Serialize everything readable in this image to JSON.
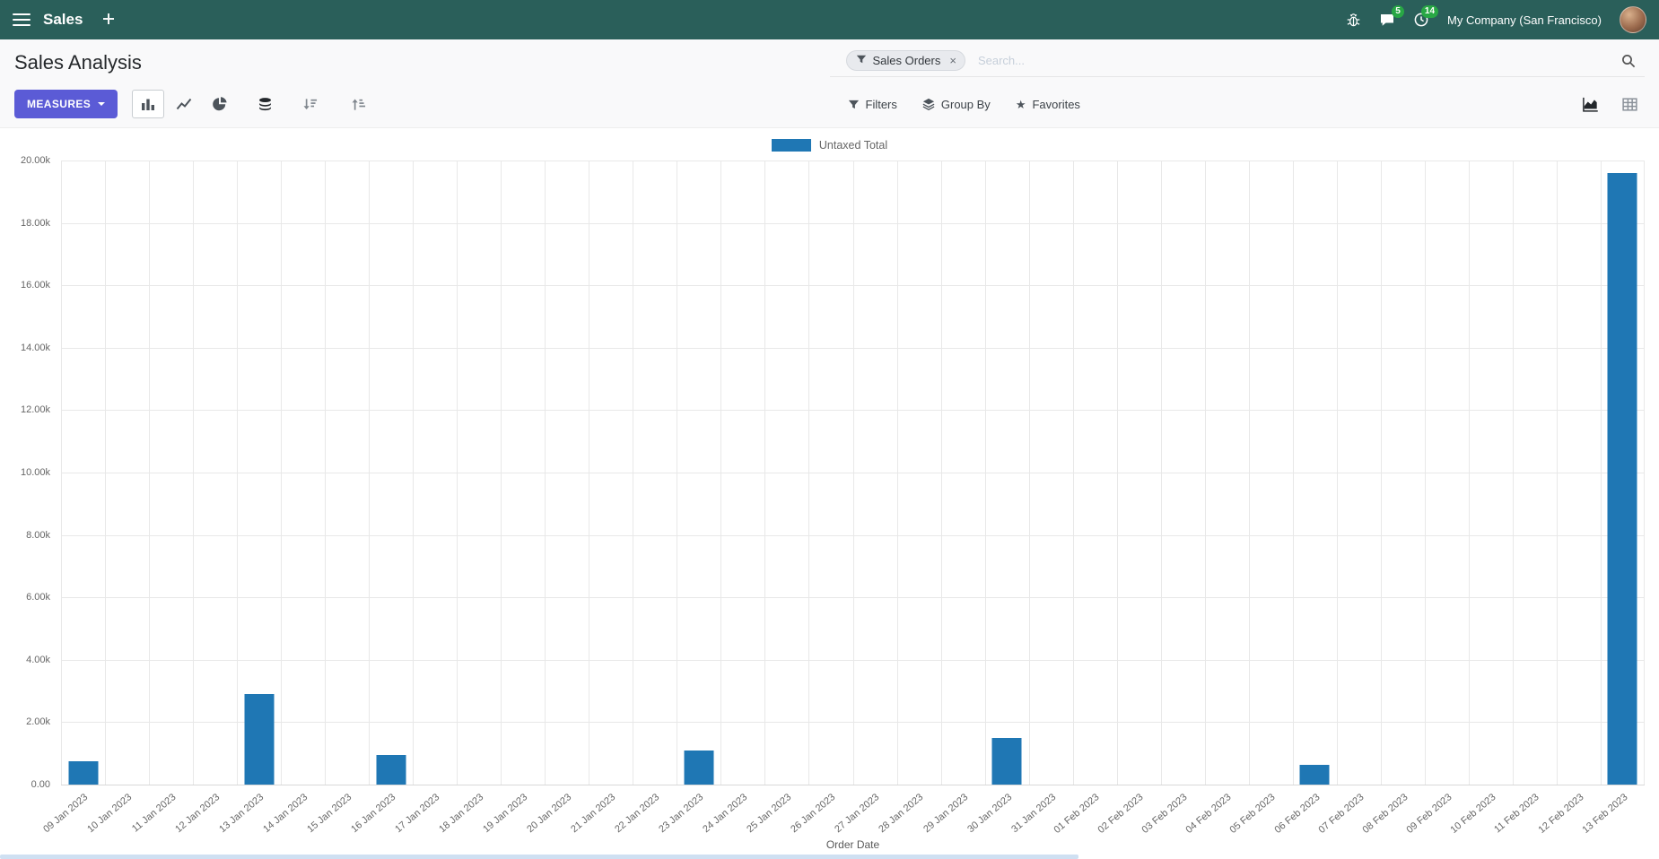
{
  "colors": {
    "header_bg": "#2a5f5a",
    "primary_button": "#5b5bd6",
    "bar": "#1f77b4",
    "badge_green": "#28a745"
  },
  "header": {
    "app_name": "Sales",
    "company": "My Company (San Francisco)",
    "messages_badge": "5",
    "activities_badge": "14"
  },
  "control_panel": {
    "title": "Sales Analysis",
    "measures_label": "MEASURES",
    "filters_label": "Filters",
    "group_by_label": "Group By",
    "favorites_label": "Favorites",
    "search": {
      "facet_label": "Sales Orders",
      "facet_remove": "×",
      "placeholder": "Search..."
    }
  },
  "chart_data": {
    "type": "bar",
    "title": "",
    "xlabel": "Order Date",
    "ylabel": "",
    "ylim": [
      0,
      20000
    ],
    "ytick_step": 2000,
    "ytick_labels": [
      "0.00",
      "2.00k",
      "4.00k",
      "6.00k",
      "8.00k",
      "10.00k",
      "12.00k",
      "14.00k",
      "16.00k",
      "18.00k",
      "20.00k"
    ],
    "grid": true,
    "legend_position": "top",
    "legend": [
      {
        "label": "Untaxed Total",
        "color": "#1f77b4"
      }
    ],
    "categories": [
      "09 Jan 2023",
      "10 Jan 2023",
      "11 Jan 2023",
      "12 Jan 2023",
      "13 Jan 2023",
      "14 Jan 2023",
      "15 Jan 2023",
      "16 Jan 2023",
      "17 Jan 2023",
      "18 Jan 2023",
      "19 Jan 2023",
      "20 Jan 2023",
      "21 Jan 2023",
      "22 Jan 2023",
      "23 Jan 2023",
      "24 Jan 2023",
      "25 Jan 2023",
      "26 Jan 2023",
      "27 Jan 2023",
      "28 Jan 2023",
      "29 Jan 2023",
      "30 Jan 2023",
      "31 Jan 2023",
      "01 Feb 2023",
      "02 Feb 2023",
      "03 Feb 2023",
      "04 Feb 2023",
      "05 Feb 2023",
      "06 Feb 2023",
      "07 Feb 2023",
      "08 Feb 2023",
      "09 Feb 2023",
      "10 Feb 2023",
      "11 Feb 2023",
      "12 Feb 2023",
      "13 Feb 2023"
    ],
    "series": [
      {
        "name": "Untaxed Total",
        "values": [
          750,
          0,
          0,
          0,
          2900,
          0,
          0,
          950,
          0,
          0,
          0,
          0,
          0,
          0,
          1080,
          0,
          0,
          0,
          0,
          0,
          0,
          1500,
          0,
          0,
          0,
          0,
          0,
          0,
          620,
          0,
          0,
          0,
          0,
          0,
          0,
          19600
        ]
      }
    ]
  }
}
